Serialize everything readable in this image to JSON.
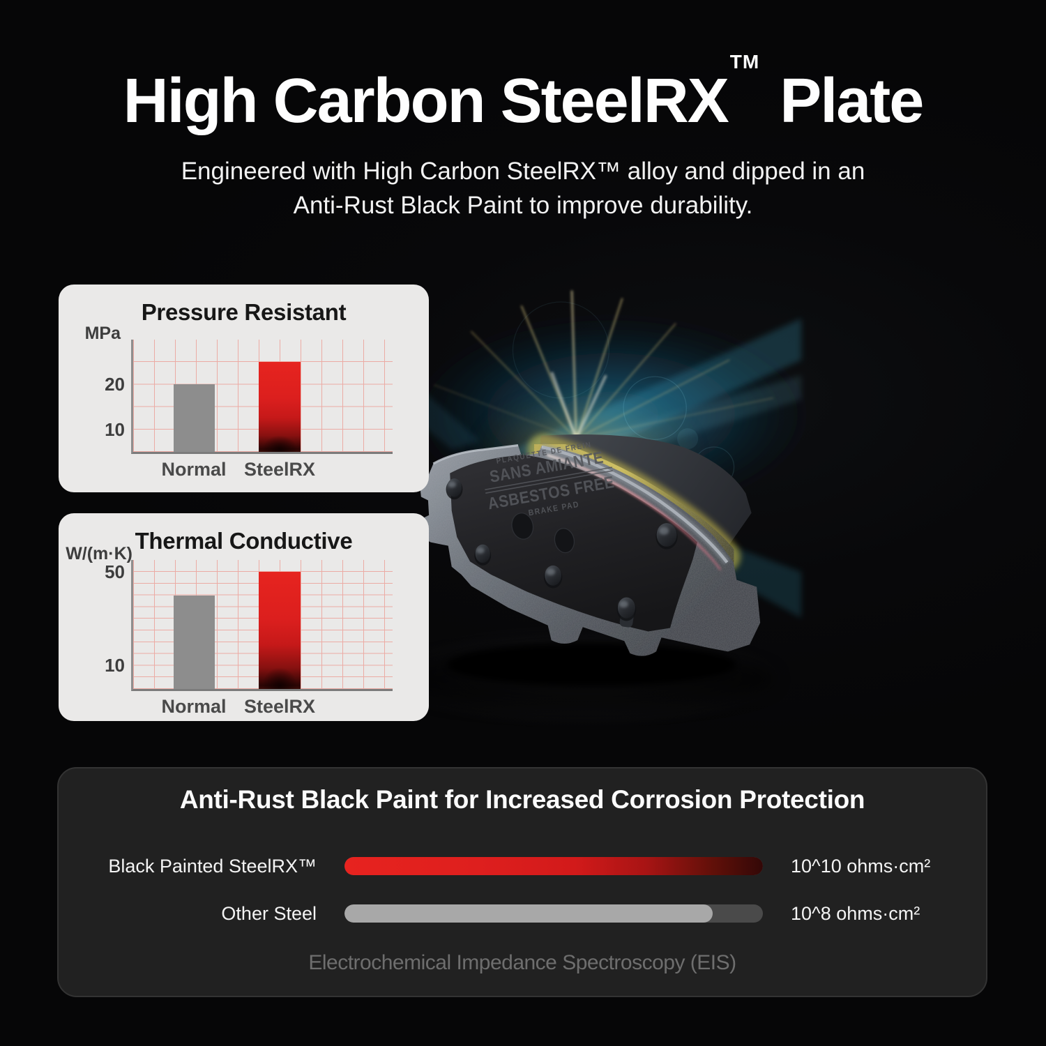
{
  "header": {
    "title_main": "High Carbon SteelRX",
    "title_tm": "TM",
    "title_suffix": " Plate",
    "subtitle_line1": "Engineered with High Carbon SteelRX™ alloy and dipped in an",
    "subtitle_line2": "Anti-Rust Black Paint to improve durability."
  },
  "charts": [
    {
      "title": "Pressure Resistant",
      "unit": "MPa",
      "categories": [
        "Normal",
        "SteelRX"
      ],
      "values": [
        20,
        25
      ],
      "ticks": [
        10,
        20
      ]
    },
    {
      "title": "Thermal Conductive",
      "unit": "W/(m·K)",
      "categories": [
        "Normal",
        "SteelRX"
      ],
      "values": [
        40,
        50
      ],
      "ticks": [
        10,
        50
      ]
    }
  ],
  "product": {
    "engraving_line1": "PLAQUETTE DE FREIN",
    "engraving_line2": "SANS AMIANTE",
    "engraving_line3": "ASBESTOS FREE",
    "engraving_line4": "BRAKE PAD"
  },
  "corrosion": {
    "title": "Anti-Rust Black Paint for Increased Corrosion Protection",
    "rows": [
      {
        "label": "Black Painted SteelRX™",
        "value": "10^10 ohms·cm²",
        "fill": 1.0
      },
      {
        "label": "Other Steel",
        "value": "10^8 ohms·cm²",
        "fill": 0.88
      }
    ],
    "caption": "Electrochemical Impedance Spectroscopy (EIS)"
  },
  "colors": {
    "accent_red": "#d71f1f",
    "bar_gray": "#8d8d8d",
    "grid_pink": "#ecaba4",
    "card_light": "#eae9e8",
    "card_dark": "#212121",
    "background": "#060607"
  },
  "chart_data": [
    {
      "type": "bar",
      "title": "Pressure Resistant",
      "ylabel": "MPa",
      "categories": [
        "Normal",
        "SteelRX"
      ],
      "values": [
        20,
        25
      ],
      "yticks": [
        10,
        20
      ],
      "grid": true,
      "series_colors": [
        "#8d8d8d",
        "#d71f1f"
      ]
    },
    {
      "type": "bar",
      "title": "Thermal Conductive",
      "ylabel": "W/(m·K)",
      "categories": [
        "Normal",
        "SteelRX"
      ],
      "values": [
        40,
        50
      ],
      "yticks": [
        10,
        50
      ],
      "grid": true,
      "series_colors": [
        "#8d8d8d",
        "#d71f1f"
      ]
    },
    {
      "type": "bar",
      "title": "Anti-Rust Black Paint for Increased Corrosion Protection",
      "orientation": "horizontal",
      "categories": [
        "Black Painted SteelRX™",
        "Other Steel"
      ],
      "values": [
        "10^10 ohms·cm²",
        "10^8 ohms·cm²"
      ],
      "relative_lengths": [
        1.0,
        0.88
      ],
      "note": "Electrochemical Impedance Spectroscopy (EIS)",
      "series_colors": [
        "#d71f1f",
        "#a8a8a8"
      ]
    }
  ]
}
